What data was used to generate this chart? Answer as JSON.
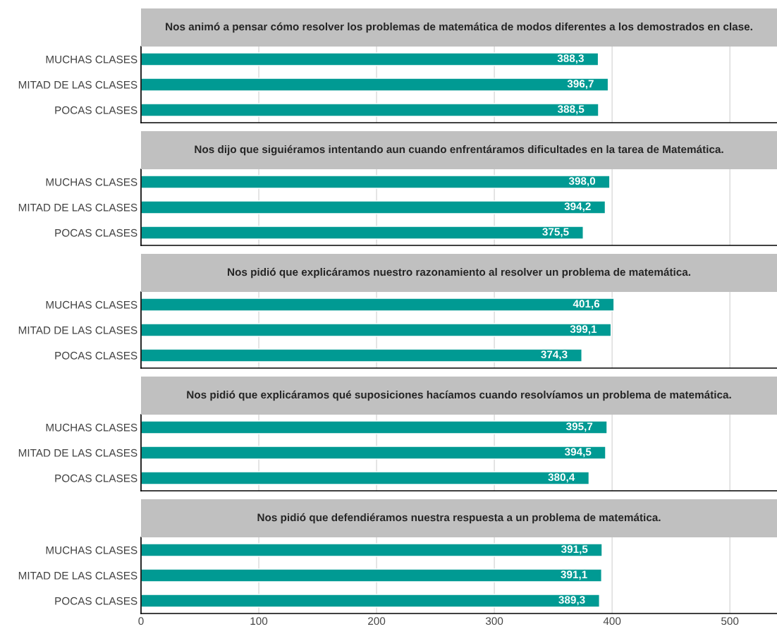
{
  "chart_data": [
    {
      "type": "bar",
      "orientation": "horizontal",
      "title": "Nos animó a pensar cómo resolver los problemas de matemática de modos diferentes a los demostrados en clase.",
      "categories": [
        "MUCHAS CLASES",
        "MITAD DE LAS CLASES",
        "POCAS CLASES"
      ],
      "values": [
        388.3,
        396.7,
        388.5
      ],
      "value_labels": [
        "388,3",
        "396,7",
        "388,5"
      ],
      "color": "#009a93",
      "xlim": [
        0,
        540
      ],
      "xticks": [
        0,
        100,
        200,
        300,
        400,
        500
      ],
      "grid": "x",
      "tick_labels": "y"
    },
    {
      "type": "bar",
      "orientation": "horizontal",
      "title": "Nos dijo que siguiéramos intentando aun cuando enfrentáramos dificultades en la tarea de Matemática.",
      "categories": [
        "MUCHAS CLASES",
        "MITAD DE LAS CLASES",
        "POCAS CLASES"
      ],
      "values": [
        398.0,
        394.2,
        375.5
      ],
      "value_labels": [
        "398,0",
        "394,2",
        "375,5"
      ],
      "color": "#009a93",
      "xlim": [
        0,
        540
      ],
      "xticks": [
        0,
        100,
        200,
        300,
        400,
        500
      ],
      "grid": "x",
      "tick_labels": "y"
    },
    {
      "type": "bar",
      "orientation": "horizontal",
      "title": "Nos pidió que explicáramos nuestro razonamiento al resolver un problema de matemática.",
      "categories": [
        "MUCHAS CLASES",
        "MITAD DE LAS CLASES",
        "POCAS CLASES"
      ],
      "values": [
        401.6,
        399.1,
        374.3
      ],
      "value_labels": [
        "401,6",
        "399,1",
        "374,3"
      ],
      "color": "#009a93",
      "xlim": [
        0,
        540
      ],
      "xticks": [
        0,
        100,
        200,
        300,
        400,
        500
      ],
      "grid": "x",
      "tick_labels": "y"
    },
    {
      "type": "bar",
      "orientation": "horizontal",
      "title": "Nos pidió que explicáramos qué suposiciones hacíamos cuando resolvíamos un problema de matemática.",
      "categories": [
        "MUCHAS CLASES",
        "MITAD DE LAS CLASES",
        "POCAS CLASES"
      ],
      "values": [
        395.7,
        394.5,
        380.4
      ],
      "value_labels": [
        "395,7",
        "394,5",
        "380,4"
      ],
      "color": "#009a93",
      "xlim": [
        0,
        540
      ],
      "xticks": [
        0,
        100,
        200,
        300,
        400,
        500
      ],
      "grid": "x",
      "tick_labels": "y"
    },
    {
      "type": "bar",
      "orientation": "horizontal",
      "title": "Nos pidió que defendiéramos nuestra respuesta a un problema de matemática.",
      "categories": [
        "MUCHAS CLASES",
        "MITAD DE LAS CLASES",
        "POCAS CLASES"
      ],
      "values": [
        391.5,
        391.1,
        389.3
      ],
      "value_labels": [
        "391,5",
        "391,1",
        "389,3"
      ],
      "color": "#009a93",
      "xlim": [
        0,
        540
      ],
      "xticks": [
        0,
        100,
        200,
        300,
        400,
        500
      ],
      "grid": "x"
    }
  ]
}
